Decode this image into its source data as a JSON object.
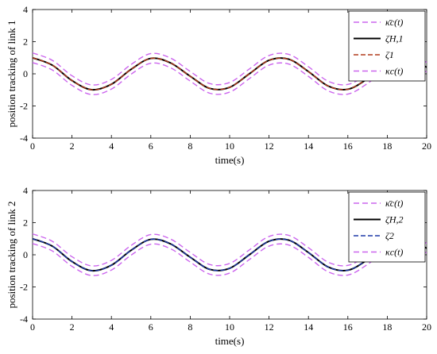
{
  "chart_data": [
    {
      "type": "line",
      "xlabel": "time(s)",
      "ylabel": "position tracking of link 1",
      "xlim": [
        0,
        20
      ],
      "ylim": [
        -4,
        4
      ],
      "xticks": [
        "0",
        "2",
        "4",
        "6",
        "8",
        "10",
        "12",
        "14",
        "16",
        "18",
        "20"
      ],
      "yticks": [
        "4",
        "2",
        "0",
        "-2",
        "-4"
      ],
      "grid": false,
      "legend_position": "top-right",
      "series": [
        {
          "name": "κ̄c(t)",
          "color": "#cc66ee",
          "style": "dashed",
          "x": [
            0,
            1,
            2,
            3,
            4,
            5,
            6,
            7,
            8,
            9,
            10,
            11,
            12,
            13,
            14,
            15,
            16,
            17,
            18,
            19,
            20
          ],
          "values": [
            1.3,
            0.84,
            -0.12,
            -0.69,
            -0.35,
            0.58,
            1.26,
            0.98,
            0.15,
            -0.61,
            -0.54,
            0.3,
            1.14,
            1.21,
            0.44,
            -0.46,
            -0.66,
            -0.0,
            0.96,
            1.29,
            0.71
          ]
        },
        {
          "name": "ζH,1",
          "color": "#000000",
          "style": "solid",
          "x": [
            0,
            1,
            2,
            3,
            4,
            5,
            6,
            7,
            8,
            9,
            10,
            11,
            12,
            13,
            14,
            15,
            16,
            17,
            18,
            19,
            20
          ],
          "values": [
            1.0,
            0.54,
            -0.42,
            -0.99,
            -0.65,
            0.28,
            0.96,
            0.68,
            -0.15,
            -0.91,
            -0.84,
            0.0,
            0.84,
            0.91,
            0.14,
            -0.76,
            -0.96,
            -0.3,
            0.66,
            0.99,
            0.41
          ]
        },
        {
          "name": "ζ1",
          "color": "#b23a1c",
          "style": "dashed",
          "x": [
            0,
            1,
            2,
            3,
            4,
            5,
            6,
            7,
            8,
            9,
            10,
            11,
            12,
            13,
            14,
            15,
            16,
            17,
            18,
            19,
            20
          ],
          "values": [
            1.0,
            0.54,
            -0.42,
            -0.99,
            -0.65,
            0.28,
            0.96,
            0.68,
            -0.15,
            -0.91,
            -0.84,
            0.0,
            0.84,
            0.91,
            0.14,
            -0.76,
            -0.96,
            -0.3,
            0.66,
            0.99,
            0.41
          ]
        },
        {
          "name": "κc(t)",
          "color": "#cc66ee",
          "style": "dashed",
          "x": [
            0,
            1,
            2,
            3,
            4,
            5,
            6,
            7,
            8,
            9,
            10,
            11,
            12,
            13,
            14,
            15,
            16,
            17,
            18,
            19,
            20
          ],
          "values": [
            0.7,
            0.24,
            -0.72,
            -1.29,
            -0.95,
            -0.02,
            0.66,
            0.38,
            -0.45,
            -1.21,
            -1.14,
            -0.3,
            0.54,
            0.61,
            -0.16,
            -1.06,
            -1.26,
            -0.6,
            0.36,
            0.69,
            0.11
          ]
        }
      ]
    },
    {
      "type": "line",
      "xlabel": "time(s)",
      "ylabel": "position tracking of link 2",
      "xlim": [
        0,
        20
      ],
      "ylim": [
        -4,
        4
      ],
      "xticks": [
        "0",
        "2",
        "4",
        "6",
        "8",
        "10",
        "12",
        "14",
        "16",
        "18",
        "20"
      ],
      "yticks": [
        "4",
        "2",
        "0",
        "-2",
        "-4"
      ],
      "grid": false,
      "legend_position": "top-right",
      "series": [
        {
          "name": "κ̄c(t)",
          "color": "#cc66ee",
          "style": "dashed",
          "x": [
            0,
            1,
            2,
            3,
            4,
            5,
            6,
            7,
            8,
            9,
            10,
            11,
            12,
            13,
            14,
            15,
            16,
            17,
            18,
            19,
            20
          ],
          "values": [
            1.3,
            0.84,
            -0.12,
            -0.69,
            -0.35,
            0.58,
            1.26,
            0.98,
            0.15,
            -0.61,
            -0.54,
            0.3,
            1.14,
            1.21,
            0.44,
            -0.46,
            -0.66,
            -0.0,
            0.96,
            1.29,
            0.71
          ]
        },
        {
          "name": "ζH,2",
          "color": "#000000",
          "style": "solid",
          "x": [
            0,
            1,
            2,
            3,
            4,
            5,
            6,
            7,
            8,
            9,
            10,
            11,
            12,
            13,
            14,
            15,
            16,
            17,
            18,
            19,
            20
          ],
          "values": [
            1.0,
            0.54,
            -0.42,
            -0.99,
            -0.65,
            0.28,
            0.96,
            0.68,
            -0.15,
            -0.91,
            -0.84,
            0.0,
            0.84,
            0.91,
            0.14,
            -0.76,
            -0.96,
            -0.3,
            0.66,
            0.99,
            0.41
          ]
        },
        {
          "name": "ζ2",
          "color": "#1f3aa8",
          "style": "dashed",
          "x": [
            0,
            1,
            2,
            3,
            4,
            5,
            6,
            7,
            8,
            9,
            10,
            11,
            12,
            13,
            14,
            15,
            16,
            17,
            18,
            19,
            20
          ],
          "values": [
            1.0,
            0.54,
            -0.42,
            -0.99,
            -0.65,
            0.28,
            0.96,
            0.68,
            -0.15,
            -0.91,
            -0.84,
            0.0,
            0.84,
            0.91,
            0.14,
            -0.76,
            -0.96,
            -0.3,
            0.66,
            0.99,
            0.41
          ]
        },
        {
          "name": "κc(t)",
          "color": "#cc66ee",
          "style": "dashed",
          "x": [
            0,
            1,
            2,
            3,
            4,
            5,
            6,
            7,
            8,
            9,
            10,
            11,
            12,
            13,
            14,
            15,
            16,
            17,
            18,
            19,
            20
          ],
          "values": [
            0.7,
            0.24,
            -0.72,
            -1.29,
            -0.95,
            -0.02,
            0.66,
            0.38,
            -0.45,
            -1.21,
            -1.14,
            -0.3,
            0.54,
            0.61,
            -0.16,
            -1.06,
            -1.26,
            -0.6,
            0.36,
            0.69,
            0.11
          ]
        }
      ]
    }
  ]
}
